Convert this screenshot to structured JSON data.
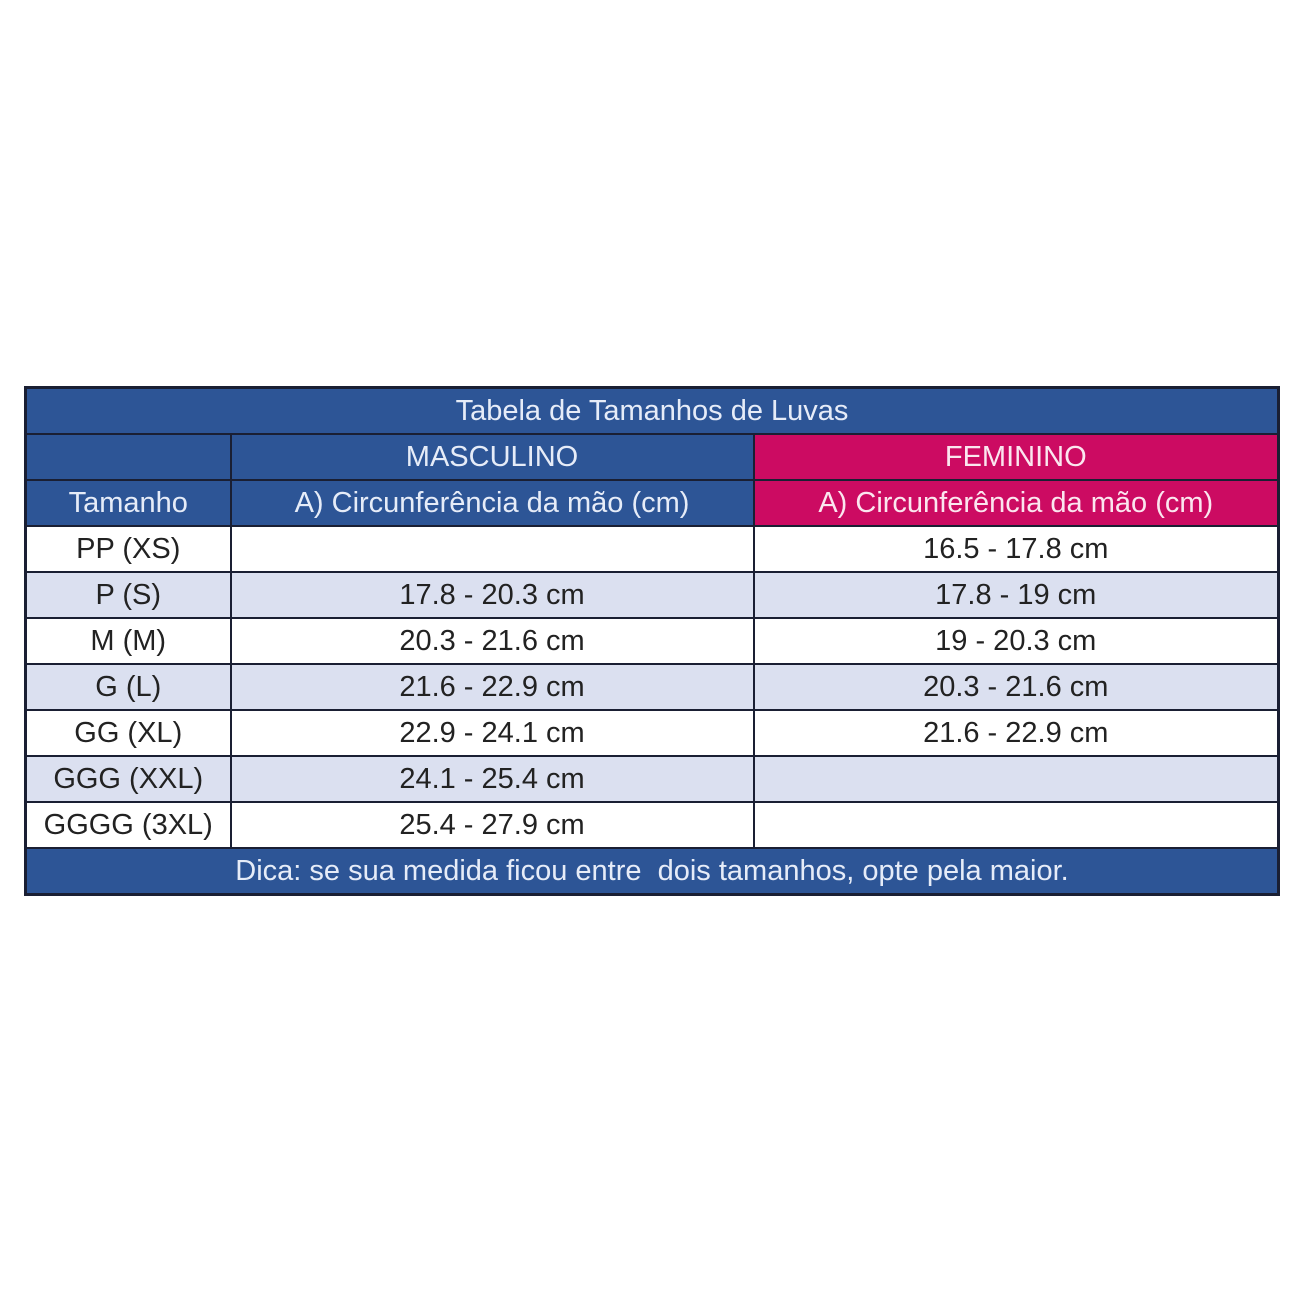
{
  "title": "Tabela de Tamanhos de Luvas",
  "header": {
    "male": "MASCULINO",
    "female": "FEMININO",
    "size_col": "Tamanho",
    "male_measure": "A) Circunferência da mão (cm)",
    "female_measure": "A) Circunferência da mão (cm)"
  },
  "colors": {
    "primary": "#2d5596",
    "female": "#cc0b62",
    "row_alt": "#dbe0f0"
  },
  "rows": [
    {
      "size": "PP (XS)",
      "male": "",
      "female": "16.5 - 17.8 cm"
    },
    {
      "size": "P (S)",
      "male": "17.8 - 20.3 cm",
      "female": "17.8 - 19 cm"
    },
    {
      "size": "M (M)",
      "male": "20.3 - 21.6 cm",
      "female": "19 - 20.3 cm"
    },
    {
      "size": "G (L)",
      "male": "21.6 - 22.9 cm",
      "female": "20.3 - 21.6 cm"
    },
    {
      "size": "GG (XL)",
      "male": "22.9 - 24.1 cm",
      "female": "21.6 - 22.9 cm"
    },
    {
      "size": "GGG (XXL)",
      "male": "24.1 - 25.4 cm",
      "female": ""
    },
    {
      "size": "GGGG (3XL)",
      "male": "25.4 - 27.9 cm",
      "female": ""
    }
  ],
  "footer": "Dica: se sua medida ficou entre  dois tamanhos, opte pela maior."
}
